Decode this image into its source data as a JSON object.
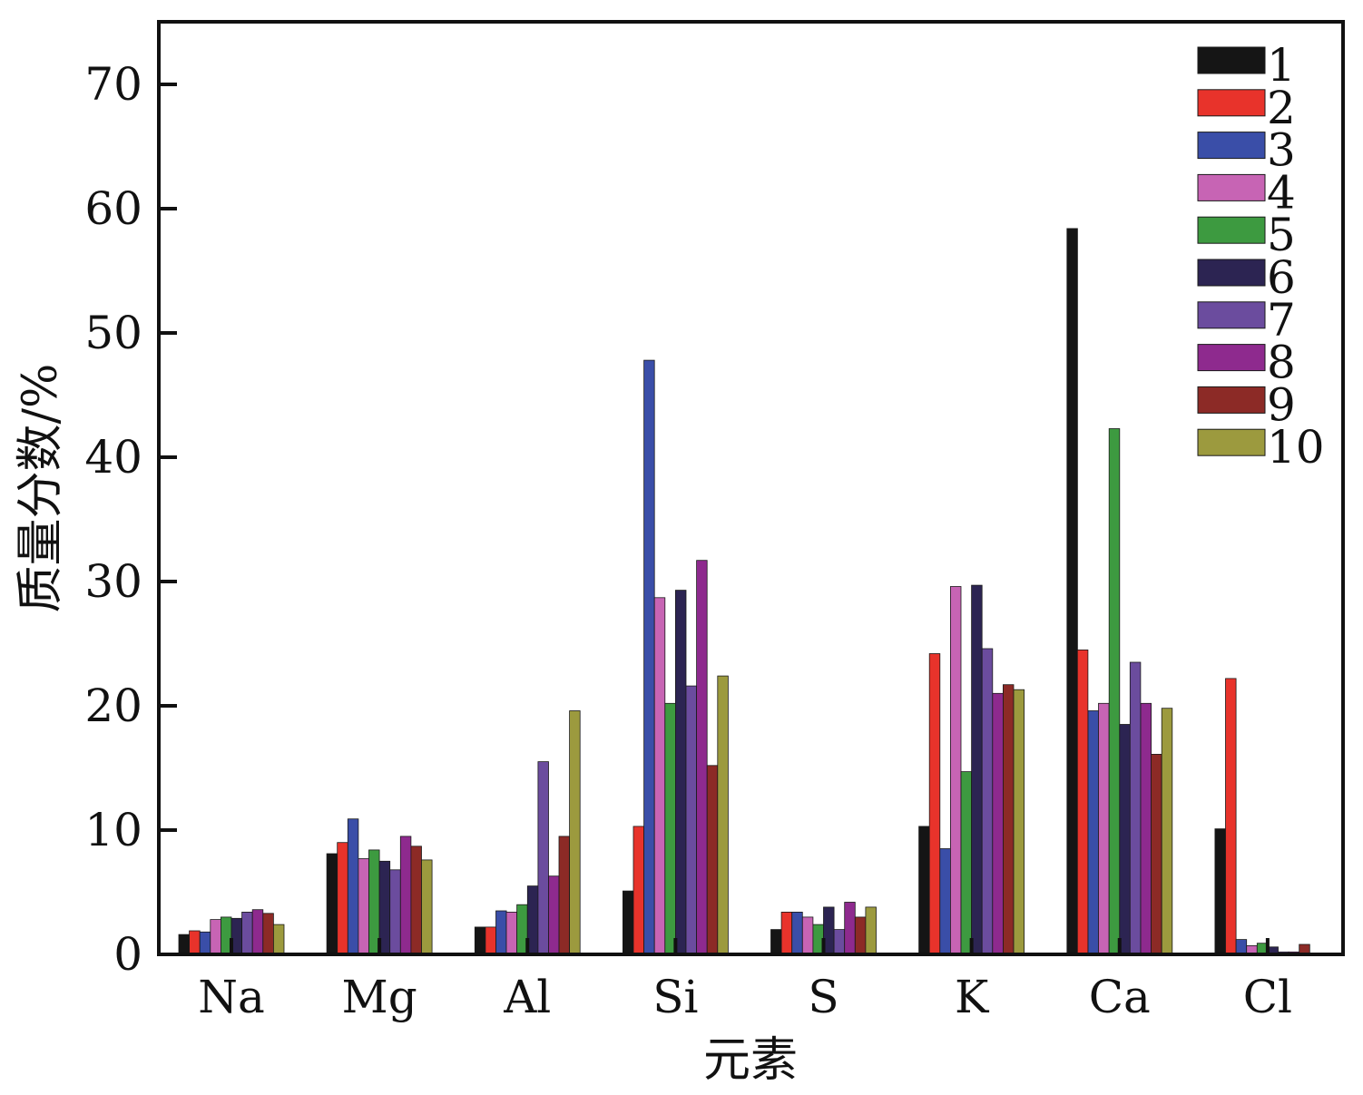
{
  "chart_data": {
    "type": "bar",
    "title": "",
    "xlabel": "元素",
    "ylabel": "质量分数/%",
    "ylim": [
      0,
      75
    ],
    "yticks": [
      0,
      10,
      20,
      30,
      40,
      50,
      60,
      70
    ],
    "grid": false,
    "legend_position": "top-right",
    "categories": [
      "Na",
      "Mg",
      "Al",
      "Si",
      "S",
      "K",
      "Ca",
      "Cl"
    ],
    "series": [
      {
        "name": "1",
        "color": "#151515",
        "values": [
          1.6,
          8.1,
          2.2,
          5.1,
          2.0,
          10.3,
          58.4,
          10.1
        ]
      },
      {
        "name": "2",
        "color": "#e8332b",
        "values": [
          1.9,
          9.0,
          2.2,
          10.3,
          3.4,
          24.2,
          24.5,
          22.2
        ]
      },
      {
        "name": "3",
        "color": "#3a4ea8",
        "values": [
          1.8,
          10.9,
          3.5,
          47.8,
          3.4,
          8.5,
          19.6,
          1.2
        ]
      },
      {
        "name": "4",
        "color": "#c764b4",
        "values": [
          2.8,
          7.7,
          3.4,
          28.7,
          3.0,
          29.6,
          20.2,
          0.7
        ]
      },
      {
        "name": "5",
        "color": "#3d9a40",
        "values": [
          3.0,
          8.4,
          4.0,
          20.2,
          2.4,
          14.7,
          42.3,
          0.9
        ]
      },
      {
        "name": "6",
        "color": "#2c2452",
        "values": [
          2.9,
          7.5,
          5.5,
          29.3,
          3.8,
          29.7,
          18.5,
          0.6
        ]
      },
      {
        "name": "7",
        "color": "#6b4c9e",
        "values": [
          3.4,
          6.8,
          15.5,
          21.6,
          2.0,
          24.6,
          23.5,
          0.2
        ]
      },
      {
        "name": "8",
        "color": "#8e2a8e",
        "values": [
          3.6,
          9.5,
          6.3,
          31.7,
          4.2,
          21.0,
          20.2,
          0.2
        ]
      },
      {
        "name": "9",
        "color": "#8c2a26",
        "values": [
          3.3,
          8.7,
          9.5,
          15.2,
          3.0,
          21.7,
          16.1,
          0.8
        ]
      },
      {
        "name": "10",
        "color": "#9c9a3e",
        "values": [
          2.4,
          7.6,
          19.6,
          22.4,
          3.8,
          21.3,
          19.8,
          0.1
        ]
      }
    ]
  }
}
